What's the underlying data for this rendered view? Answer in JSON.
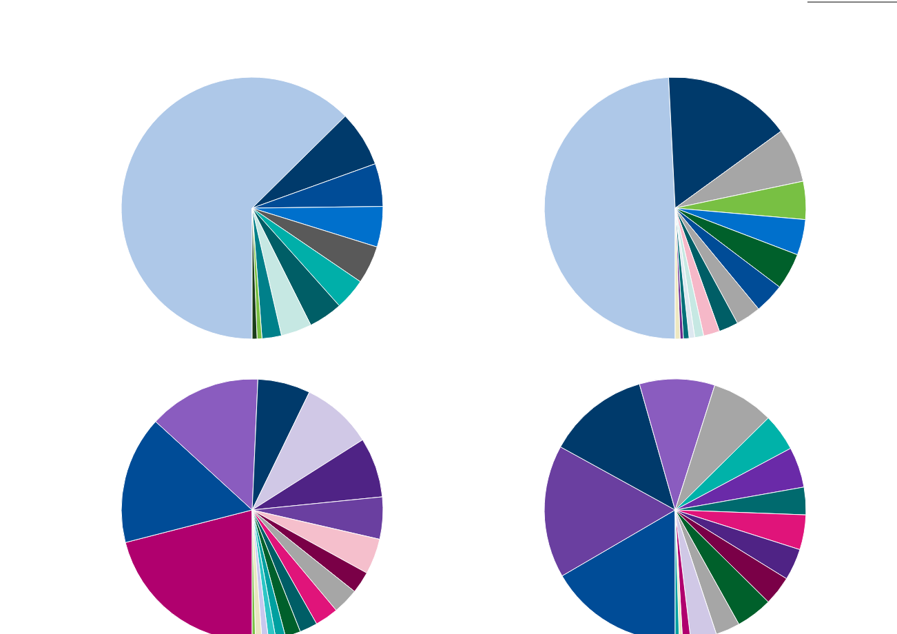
{
  "chart_data": [
    {
      "type": "pie",
      "categories": [
        null,
        null,
        null,
        null,
        null,
        null,
        null,
        null,
        null,
        null,
        null
      ],
      "values": [
        62.6,
        6.9,
        5.3,
        5.0,
        4.7,
        3.9,
        4.2,
        3.8,
        2.4,
        0.6,
        0.6
      ],
      "colors": [
        "#aec8e8",
        "#003a6b",
        "#004c97",
        "#0070cc",
        "#595959",
        "#00afa9",
        "#005e66",
        "#c6e8e3",
        "#00808a",
        "#7ac143",
        "#1a3d1a"
      ]
    },
    {
      "type": "pie",
      "categories": [
        null,
        null,
        null,
        null,
        null,
        null,
        null,
        null,
        null,
        null,
        null,
        null,
        null,
        null,
        null
      ],
      "values": [
        49.2,
        15.8,
        6.7,
        4.7,
        4.4,
        4.5,
        3.7,
        3.1,
        2.4,
        2.0,
        1.1,
        0.7,
        0.7,
        0.4,
        0.6
      ],
      "colors": [
        "#aec8e8",
        "#003a6b",
        "#a6a6a6",
        "#78c043",
        "#0070cc",
        "#00602b",
        "#004c97",
        "#a6a6a6",
        "#005e66",
        "#f6b8c8",
        "#c6e8e3",
        "#dde8f0",
        "#006f78",
        "#6b2a8c",
        "#eee8c0"
      ]
    },
    {
      "type": "pie",
      "categories": [
        null,
        null,
        null,
        null,
        null,
        null,
        null,
        null,
        null,
        null,
        null,
        null,
        null,
        null,
        null,
        null,
        null,
        null
      ],
      "values": [
        21.0,
        15.8,
        13.9,
        6.5,
        8.8,
        7.4,
        5.2,
        4.4,
        2.7,
        3.2,
        2.9,
        2.2,
        1.9,
        1.2,
        0.9,
        0.8,
        0.8,
        0.4
      ],
      "colors": [
        "#b0006e",
        "#004c97",
        "#8a5cbf",
        "#003a6b",
        "#d0c8e6",
        "#4f2385",
        "#6a3fa0",
        "#f5bfcc",
        "#7a0047",
        "#a6a6a6",
        "#e0147a",
        "#005e66",
        "#00602b",
        "#00a0a0",
        "#2cc6c6",
        "#c8c8ee",
        "#e8e6c0",
        "#7ac143"
      ]
    },
    {
      "type": "pie",
      "categories": [
        null,
        null,
        null,
        null,
        null,
        null,
        null,
        null,
        null,
        null,
        null,
        null,
        null,
        null,
        null,
        null,
        null
      ],
      "values": [
        16.6,
        16.4,
        12.6,
        9.3,
        7.7,
        4.6,
        5.0,
        3.4,
        4.3,
        3.9,
        3.6,
        4.5,
        3.0,
        3.2,
        1.0,
        0.4,
        0.5
      ],
      "colors": [
        "#004c97",
        "#6a3fa0",
        "#003a6b",
        "#8a5cbf",
        "#a6a6a6",
        "#00b2a9",
        "#6a2aa8",
        "#006a6e",
        "#e0147a",
        "#4f2385",
        "#7a0047",
        "#00602b",
        "#a6a6a6",
        "#d0c8e6",
        "#b0006e",
        "#e8e6c0",
        "#00a0a0"
      ]
    }
  ]
}
